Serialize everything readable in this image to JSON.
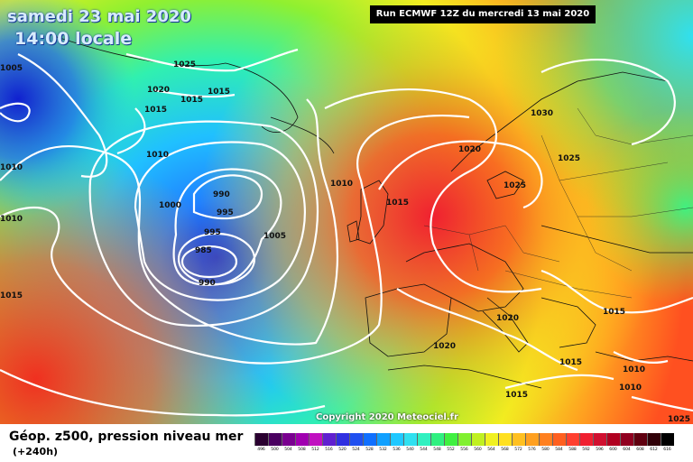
{
  "header": {
    "date": "samedi 23 mai 2020",
    "time": "14:00 locale",
    "run": "Run ECMWF 12Z du mercredi 13 mai 2020"
  },
  "map": {
    "copyright": "Copyright 2020 Meteociel.fr",
    "pressure_labels": [
      "1005",
      "1025",
      "1020",
      "1015",
      "1015",
      "1015",
      "1010",
      "1010",
      "1000",
      "990",
      "995",
      "995",
      "985",
      "990",
      "1005",
      "1010",
      "1015",
      "1020",
      "1030",
      "1025",
      "1025",
      "1020",
      "1020",
      "1015",
      "1015",
      "1015",
      "1010",
      "1010",
      "1025",
      "1010",
      "1015"
    ]
  },
  "footer": {
    "title": "Géop. z500, pression niveau mer",
    "subtitle": "(+240h)",
    "scale_labels": [
      "496",
      "500",
      "504",
      "508",
      "512",
      "516",
      "520",
      "524",
      "528",
      "532",
      "536",
      "540",
      "544",
      "548",
      "552",
      "556",
      "560",
      "564",
      "568",
      "572",
      "576",
      "580",
      "584",
      "588",
      "592",
      "596",
      "600",
      "604",
      "608",
      "612",
      "616"
    ],
    "scale_colors": [
      "#2a0030",
      "#4a0060",
      "#7a0090",
      "#a000b0",
      "#c010c0",
      "#6020d0",
      "#3030e0",
      "#2050f0",
      "#1070ff",
      "#10a0ff",
      "#20c8ff",
      "#30e0f0",
      "#30f0c0",
      "#30f080",
      "#40f040",
      "#80f030",
      "#c0f020",
      "#f0f020",
      "#ffe020",
      "#ffc020",
      "#ffa020",
      "#ff8020",
      "#ff6020",
      "#ff4030",
      "#f02030",
      "#d01030",
      "#b00020",
      "#900020",
      "#600010",
      "#300008",
      "#000000"
    ]
  }
}
